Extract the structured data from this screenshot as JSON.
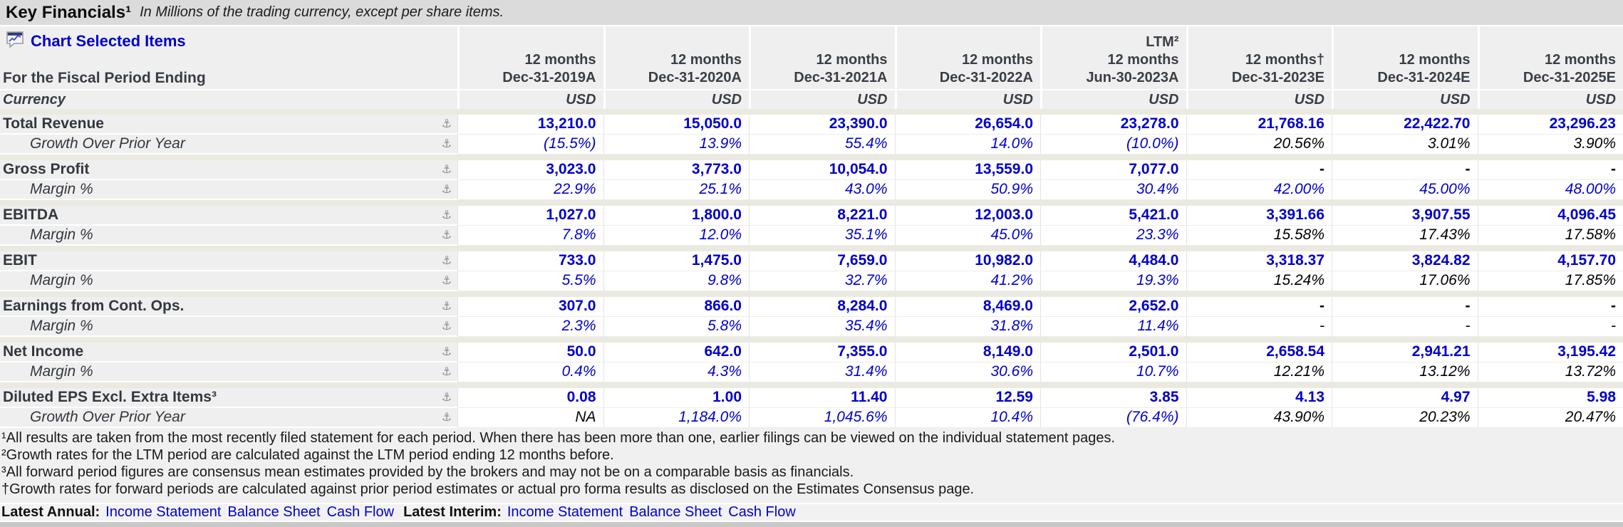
{
  "title": {
    "heading": "Key Financials¹",
    "subtitle": "In Millions of the trading currency, except per share items."
  },
  "table": {
    "chart_link_label": "Chart Selected Items",
    "chart_link_icon": "chart-bubble-icon",
    "fiscal_label": "For the Fiscal Period Ending",
    "currency_label": "Currency",
    "row_icon": "anchor-icon",
    "columns": [
      {
        "lines": [
          "12 months",
          "Dec-31-2019A"
        ],
        "currency": "USD"
      },
      {
        "lines": [
          "12 months",
          "Dec-31-2020A"
        ],
        "currency": "USD"
      },
      {
        "lines": [
          "12 months",
          "Dec-31-2021A"
        ],
        "currency": "USD"
      },
      {
        "lines": [
          "12 months",
          "Dec-31-2022A"
        ],
        "currency": "USD"
      },
      {
        "lines": [
          "LTM²",
          "12 months",
          "Jun-30-2023A"
        ],
        "currency": "USD"
      },
      {
        "lines": [
          "12 months†",
          "Dec-31-2023E"
        ],
        "currency": "USD"
      },
      {
        "lines": [
          "12 months",
          "Dec-31-2024E"
        ],
        "currency": "USD"
      },
      {
        "lines": [
          "12 months",
          "Dec-31-2025E"
        ],
        "currency": "USD"
      }
    ],
    "sections": [
      {
        "label": "Total Revenue",
        "values": [
          "13,210.0",
          "15,050.0",
          "23,390.0",
          "26,654.0",
          "23,278.0",
          "21,768.16",
          "22,422.70",
          "23,296.23"
        ],
        "black": [],
        "sub_label": "Growth Over Prior Year",
        "sub_values": [
          "(15.5%)",
          "13.9%",
          "55.4%",
          "14.0%",
          "(10.0%)",
          "20.56%",
          "3.01%",
          "3.90%"
        ],
        "sub_black": [
          5,
          6,
          7
        ]
      },
      {
        "label": "Gross Profit",
        "values": [
          "3,023.0",
          "3,773.0",
          "10,054.0",
          "13,559.0",
          "7,077.0",
          "-",
          "-",
          "-"
        ],
        "black": [
          5,
          6,
          7
        ],
        "sub_label": "Margin %",
        "sub_values": [
          "22.9%",
          "25.1%",
          "43.0%",
          "50.9%",
          "30.4%",
          "42.00%",
          "45.00%",
          "48.00%"
        ],
        "sub_black": []
      },
      {
        "label": "EBITDA",
        "values": [
          "1,027.0",
          "1,800.0",
          "8,221.0",
          "12,003.0",
          "5,421.0",
          "3,391.66",
          "3,907.55",
          "4,096.45"
        ],
        "black": [],
        "sub_label": "Margin %",
        "sub_values": [
          "7.8%",
          "12.0%",
          "35.1%",
          "45.0%",
          "23.3%",
          "15.58%",
          "17.43%",
          "17.58%"
        ],
        "sub_black": [
          5,
          6,
          7
        ]
      },
      {
        "label": "EBIT",
        "values": [
          "733.0",
          "1,475.0",
          "7,659.0",
          "10,982.0",
          "4,484.0",
          "3,318.37",
          "3,824.82",
          "4,157.70"
        ],
        "black": [],
        "sub_label": "Margin %",
        "sub_values": [
          "5.5%",
          "9.8%",
          "32.7%",
          "41.2%",
          "19.3%",
          "15.24%",
          "17.06%",
          "17.85%"
        ],
        "sub_black": [
          5,
          6,
          7
        ]
      },
      {
        "label": "Earnings from Cont. Ops.",
        "values": [
          "307.0",
          "866.0",
          "8,284.0",
          "8,469.0",
          "2,652.0",
          "-",
          "-",
          "-"
        ],
        "black": [
          5,
          6,
          7
        ],
        "sub_label": "Margin %",
        "sub_values": [
          "2.3%",
          "5.8%",
          "35.4%",
          "31.8%",
          "11.4%",
          "-",
          "-",
          "-"
        ],
        "sub_black": [
          5,
          6,
          7
        ]
      },
      {
        "label": "Net Income",
        "values": [
          "50.0",
          "642.0",
          "7,355.0",
          "8,149.0",
          "2,501.0",
          "2,658.54",
          "2,941.21",
          "3,195.42"
        ],
        "black": [],
        "sub_label": "Margin %",
        "sub_values": [
          "0.4%",
          "4.3%",
          "31.4%",
          "30.6%",
          "10.7%",
          "12.21%",
          "13.12%",
          "13.72%"
        ],
        "sub_black": [
          5,
          6,
          7
        ]
      },
      {
        "label": "Diluted EPS Excl. Extra Items³",
        "values": [
          "0.08",
          "1.00",
          "11.40",
          "12.59",
          "3.85",
          "4.13",
          "4.97",
          "5.98"
        ],
        "black": [],
        "sub_label": "Growth Over Prior Year",
        "sub_values": [
          "NA",
          "1,184.0%",
          "1,045.6%",
          "10.4%",
          "(76.4%)",
          "43.90%",
          "20.23%",
          "20.47%"
        ],
        "sub_black": [
          0,
          5,
          6,
          7
        ]
      }
    ]
  },
  "footnotes": [
    "¹All results are taken from the most recently filed statement for each period. When there has been more than one, earlier filings can be viewed on the individual statement pages.",
    "²Growth rates for the LTM period are calculated against the LTM period ending 12 months before.",
    "³All forward period figures are consensus mean estimates provided by the brokers and may not be on a comparable basis as financials.",
    "†Growth rates for forward periods are calculated against prior period estimates or actual pro forma results as disclosed on the Estimates Consensus page."
  ],
  "latest": {
    "annual_label": "Latest Annual:",
    "interim_label": "Latest Interim:",
    "links": [
      "Income Statement",
      "Balance Sheet",
      "Cash Flow"
    ]
  },
  "colors": {
    "link_blue": "#0000cc",
    "estimate_text": "#000000",
    "header_text": "#3a3f46",
    "cell_bg": "#efefef",
    "section_separator": "#eaeae1",
    "title_bar_bg": "#dbdbdb"
  }
}
